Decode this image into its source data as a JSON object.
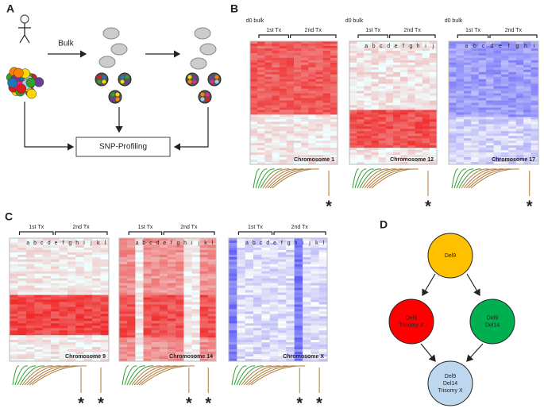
{
  "panels": {
    "A": {
      "label": "A",
      "arrow_label": "Bulk",
      "box": "SNP-Profiling"
    },
    "B": {
      "label": "B",
      "heatmaps": [
        {
          "header": "d0 bulk",
          "groups": [
            "1st Tx",
            "2nd Tx"
          ],
          "columns": [],
          "title": "Chromosome 1",
          "markers": [
            "*"
          ]
        },
        {
          "header": "d0 bulk",
          "groups": [
            "1st Tx",
            "2nd Tx"
          ],
          "columns": [
            "a",
            "b",
            "c",
            "d",
            "e",
            "f",
            "g",
            "h",
            "i",
            "j"
          ],
          "title": "Chromosome 12",
          "markers": [
            "*"
          ]
        },
        {
          "header": "d0 bulk",
          "groups": [
            "1st Tx",
            "2nd Tx"
          ],
          "columns": [
            "a",
            "b",
            "c",
            "d",
            "e",
            "f",
            "g",
            "h",
            "i"
          ],
          "title": "Chromosome 17",
          "markers": [
            "*"
          ]
        }
      ]
    },
    "C": {
      "label": "C",
      "heatmaps": [
        {
          "groups": [
            "1st Tx",
            "2nd Tx"
          ],
          "columns": [
            "a",
            "b",
            "c",
            "d",
            "e",
            "f",
            "g",
            "h",
            "i",
            "j",
            "k",
            "l"
          ],
          "title": "Chromosome 9",
          "markers": [
            "*",
            "*"
          ]
        },
        {
          "groups": [
            "1st Tx",
            "2nd Tx"
          ],
          "columns": [
            "a",
            "b",
            "c",
            "d",
            "e",
            "f",
            "g",
            "h",
            "i",
            "j",
            "k",
            "l"
          ],
          "title": "Chromosome 14",
          "markers": [
            "*",
            "*"
          ]
        },
        {
          "groups": [
            "1st Tx",
            "2nd Tx"
          ],
          "columns": [
            "a",
            "b",
            "c",
            "d",
            "e",
            "f",
            "g",
            "h",
            "i",
            "j",
            "k",
            "l"
          ],
          "title": "Chromosome X",
          "markers": [
            "*",
            "*"
          ]
        }
      ]
    },
    "D": {
      "label": "D",
      "nodes": [
        {
          "lines": [
            "Del9"
          ]
        },
        {
          "lines": [
            "Del9",
            "Trisomy X"
          ]
        },
        {
          "lines": [
            "Del9",
            "Del14"
          ]
        },
        {
          "lines": [
            "Del9",
            "Del14",
            "Trisomy X"
          ]
        }
      ]
    }
  }
}
